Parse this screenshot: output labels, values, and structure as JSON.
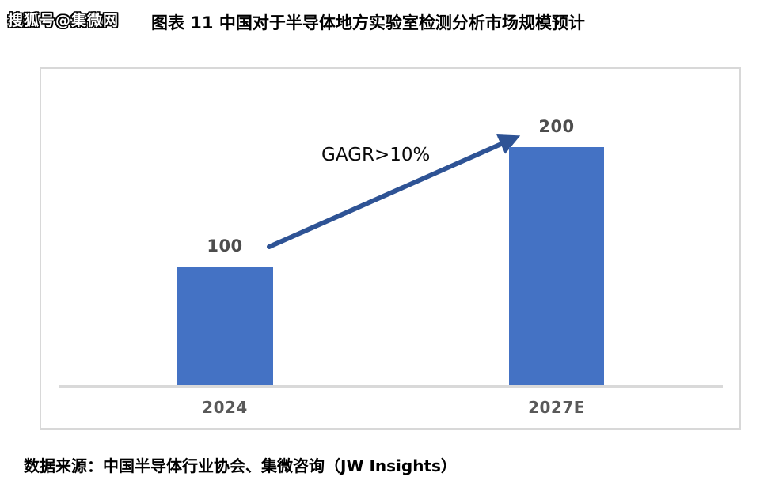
{
  "watermark": "搜狐号@集微网",
  "title": "图表 11 中国对于半导体地方实验室检测分析市场规模预计",
  "source": "数据来源：中国半导体行业协会、集微咨询（JW Insights）",
  "chart_data": {
    "type": "bar",
    "title": "图表 11 中国对于半导体地方实验室检测分析市场规模预计",
    "categories": [
      "2024",
      "2027E"
    ],
    "values": [
      100,
      200
    ],
    "annotation": "GAGR>10%",
    "xlabel": "",
    "ylabel": "",
    "ylim": [
      0,
      220
    ],
    "grid": false,
    "legend": false,
    "bar_color": "#4472C4",
    "arrow_color": "#2E5395",
    "value_label_color": "#4D4D4D",
    "category_label_color": "#595959",
    "axis_color": "#D9D9D9",
    "frame_color": "#D8D8D8"
  }
}
